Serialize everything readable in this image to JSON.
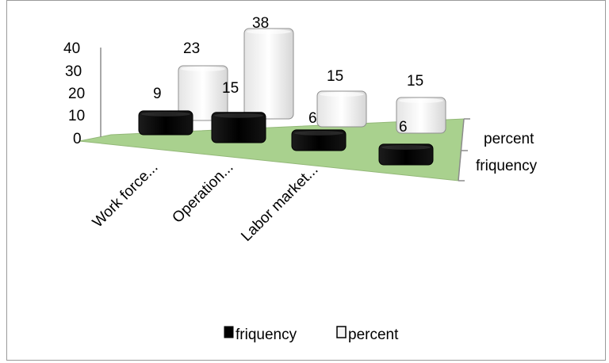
{
  "chart_data": {
    "type": "bar",
    "style": "3d-clustered-depth",
    "categories": [
      "Work force...",
      "Operation...",
      "Labor market...",
      ""
    ],
    "series": [
      {
        "name": "friquency",
        "values": [
          9,
          15,
          6,
          6
        ],
        "color": "#0d0d0d"
      },
      {
        "name": "percent",
        "values": [
          23,
          38,
          15,
          15
        ],
        "color": "#f2f2f2"
      }
    ],
    "yticks": [
      "0",
      "10",
      "20",
      "30",
      "40"
    ],
    "ylim": [
      0,
      40
    ],
    "depth_labels": [
      "percent",
      "friquency"
    ],
    "floor_color": "#a9d18e",
    "legend_position": "bottom",
    "title": "",
    "xlabel": "",
    "ylabel": ""
  }
}
